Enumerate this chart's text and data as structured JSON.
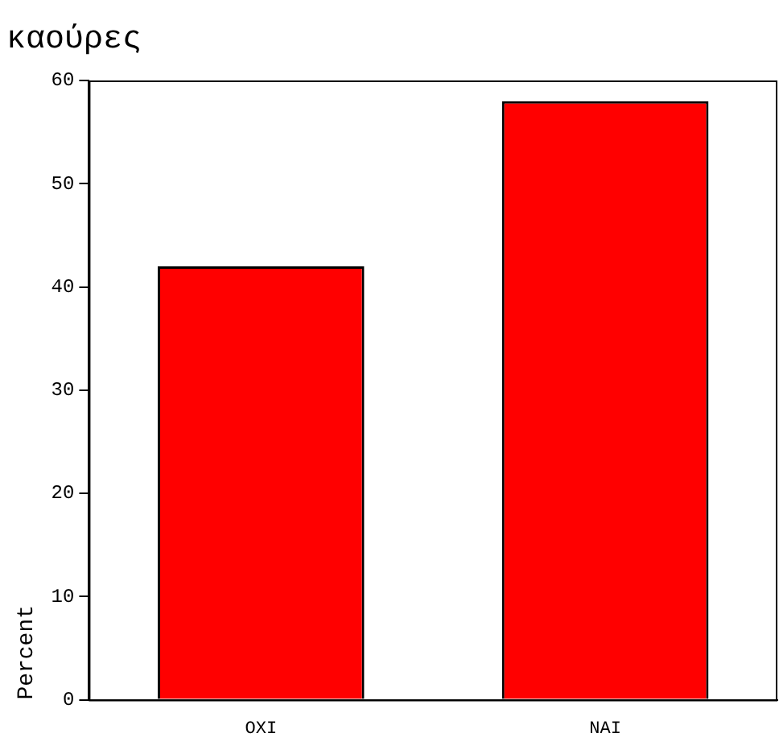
{
  "chart_data": {
    "type": "bar",
    "title": "καούρες",
    "ylabel": "Percent",
    "categories": [
      "ΟΧΙ",
      "ΝΑΙ"
    ],
    "values": [
      42,
      58
    ],
    "color": "#ff0000",
    "ylim": [
      0,
      60
    ],
    "yticks": [
      0,
      10,
      20,
      30,
      40,
      50,
      60
    ],
    "grid": false,
    "legend": false
  }
}
